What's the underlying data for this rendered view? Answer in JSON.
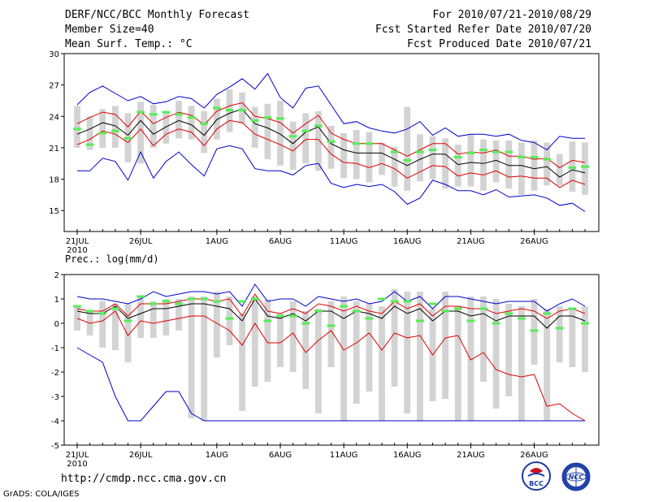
{
  "header": {
    "title": "DERF/NCC/BCC Monthly Forecast",
    "member_size": "Member Size=40",
    "variable": "Mean Surf. Temp.: °C",
    "period": "For 2010/07/21-2010/08/29",
    "fcst_started": "Fcst Started Refer Date 2010/07/20",
    "fcst_produced": "Fcst Produced Date 2010/07/21"
  },
  "footer": {
    "url": "http://cmdp.ncc.cma.gov.cn",
    "grads": "GrADS: COLA/IGES",
    "logo_bcc": "BCC",
    "logo_ncc": "NCC"
  },
  "colors": {
    "box": "#d3d3d3",
    "obs": "#55ee55",
    "mean": "#000000",
    "spread": "#dd0000",
    "extreme": "#0000cc"
  },
  "chart_data": [
    {
      "type": "line",
      "name": "temperature",
      "title": "Mean Surf. Temp.: °C",
      "ylim": [
        13,
        30
      ],
      "yticks": [
        15,
        18,
        21,
        24,
        27,
        30
      ],
      "x_days": 40,
      "xticks": [
        {
          "day": 0,
          "label": "21JUL",
          "label2": "2010"
        },
        {
          "day": 5,
          "label": "26JUL"
        },
        {
          "day": 11,
          "label": "1AUG"
        },
        {
          "day": 16,
          "label": "6AUG"
        },
        {
          "day": 21,
          "label": "11AUG"
        },
        {
          "day": 26,
          "label": "16AUG"
        },
        {
          "day": 31,
          "label": "21AUG"
        },
        {
          "day": 36,
          "label": "26AUG"
        }
      ],
      "series": [
        {
          "name": "max",
          "values": [
            18.8,
            18.8,
            20,
            19.7,
            17.9,
            20.6,
            18.1,
            19.7,
            20.6,
            19.4,
            18.3,
            20.9,
            21.2,
            20.9,
            19,
            18.8,
            18.8,
            18.4,
            19.3,
            19.5,
            17.6,
            17.2,
            17.5,
            17.3,
            17.5,
            16.8,
            15.6,
            16.2,
            17.9,
            17.5,
            16.9,
            16.9,
            16.5,
            17,
            16.3,
            16.4,
            16.5,
            16.2,
            15.5,
            15.7,
            14.9
          ]
        },
        {
          "name": "lower",
          "values": [
            21.3,
            21.8,
            22.6,
            22.3,
            21.5,
            22.8,
            21.2,
            22.3,
            22.8,
            22.5,
            21.2,
            22.8,
            23.6,
            23.4,
            22.3,
            21.8,
            21.3,
            20.7,
            21.8,
            21.8,
            20.4,
            19.6,
            19.5,
            19.1,
            19.5,
            19,
            18.1,
            18.7,
            19.3,
            19.2,
            18.3,
            18.6,
            18.4,
            18.8,
            18.2,
            18.3,
            18.1,
            18.1,
            17.2,
            17.9,
            17.5
          ]
        },
        {
          "name": "mean",
          "values": [
            22.3,
            22.8,
            23.4,
            23.1,
            22.2,
            23.6,
            22.3,
            23,
            23.6,
            23.2,
            22.2,
            23.7,
            24.3,
            24.7,
            23.3,
            22.9,
            22.3,
            21.4,
            22.5,
            23,
            21.4,
            20.8,
            20.5,
            20.5,
            20.5,
            19.9,
            19.3,
            19.9,
            20.4,
            20.4,
            19.4,
            19.6,
            19.5,
            19.8,
            19.3,
            19.3,
            19,
            19.2,
            18.2,
            18.9,
            18.6
          ]
        },
        {
          "name": "upper",
          "values": [
            23.3,
            23.9,
            24.4,
            24.2,
            23,
            24.5,
            23.3,
            23.9,
            24.4,
            24.1,
            23.2,
            24.5,
            25,
            25.3,
            24,
            23.8,
            23.4,
            22.4,
            23.3,
            24.1,
            22.4,
            21.8,
            21.4,
            21.4,
            21.4,
            20.8,
            20.2,
            20.8,
            21.4,
            21.4,
            20.4,
            20.6,
            20.5,
            20.8,
            20.2,
            20.2,
            19.9,
            20,
            19.1,
            19.8,
            19.6
          ]
        },
        {
          "name": "min",
          "values": [
            25.1,
            26.3,
            26.9,
            26.2,
            25.5,
            25.9,
            25.2,
            25.4,
            25.9,
            25.7,
            24.8,
            26.1,
            26.8,
            27.6,
            26.6,
            28.1,
            25.8,
            24.8,
            26.7,
            26.9,
            25.1,
            23.3,
            23.5,
            22.9,
            22.6,
            22.4,
            22.8,
            23.5,
            22.2,
            22.9,
            22.1,
            22.3,
            22.3,
            22.1,
            22.3,
            21.7,
            21.5,
            20.8,
            22.1,
            21.9,
            21.9
          ]
        }
      ],
      "boxes": [
        {
          "low": 21,
          "high": 25
        },
        {
          "low": 20.8,
          "high": 24
        },
        {
          "low": 21,
          "high": 24.7
        },
        {
          "low": 21,
          "high": 25
        },
        {
          "low": 19.6,
          "high": 24.3
        },
        {
          "low": 19.5,
          "high": 25.4
        },
        {
          "low": 21,
          "high": 25.1
        },
        {
          "low": 21.4,
          "high": 24.3
        },
        {
          "low": 21.9,
          "high": 25.5
        },
        {
          "low": 21.8,
          "high": 25
        },
        {
          "low": 20.5,
          "high": 24.5
        },
        {
          "low": 21.8,
          "high": 25.7
        },
        {
          "low": 22.5,
          "high": 26.6
        },
        {
          "low": 23.3,
          "high": 26.3
        },
        {
          "low": 21,
          "high": 24.9
        },
        {
          "low": 19.9,
          "high": 25.2
        },
        {
          "low": 19.3,
          "high": 25.5
        },
        {
          "low": 18.9,
          "high": 23.5
        },
        {
          "low": 19.5,
          "high": 24.3
        },
        {
          "low": 18.8,
          "high": 24.5
        },
        {
          "low": 19,
          "high": 23.1
        },
        {
          "low": 18.1,
          "high": 22.4
        },
        {
          "low": 18,
          "high": 22.7
        },
        {
          "low": 17.7,
          "high": 22.5
        },
        {
          "low": 18.4,
          "high": 21.5
        },
        {
          "low": 17.3,
          "high": 21.1
        },
        {
          "low": 16.9,
          "high": 24.9
        },
        {
          "low": 17.8,
          "high": 22.3
        },
        {
          "low": 18,
          "high": 22.1
        },
        {
          "low": 17.1,
          "high": 21.9
        },
        {
          "low": 17.3,
          "high": 21.3
        },
        {
          "low": 17.3,
          "high": 22.3
        },
        {
          "low": 16.9,
          "high": 21.8
        },
        {
          "low": 17.7,
          "high": 21.7
        },
        {
          "low": 17.1,
          "high": 21.7
        },
        {
          "low": 16.5,
          "high": 21.5
        },
        {
          "low": 16.9,
          "high": 21.7
        },
        {
          "low": 17.4,
          "high": 21.5
        },
        {
          "low": 17.4,
          "high": 20.4
        },
        {
          "low": 16.8,
          "high": 21.6
        },
        {
          "low": 16.5,
          "high": 21.5
        }
      ],
      "observed": [
        22.8,
        21.3,
        22.4,
        22.6,
        21.9,
        24.4,
        24.2,
        24.4,
        24.2,
        23.9,
        23.3,
        24.8,
        24.6,
        24.6,
        23.6,
        23.9,
        23.8,
        22.1,
        22.6,
        23.1,
        21.6,
        null,
        21.4,
        21.4,
        null,
        20.6,
        19.8,
        20.6,
        20.8,
        null,
        20.1,
        20.5,
        20.8,
        20.6,
        20.6,
        20.1,
        20.1,
        19.9,
        null,
        19.1,
        19.2
      ]
    },
    {
      "type": "line",
      "name": "precipitation",
      "title": "Prec.: log(mm/d)",
      "ylim": [
        -5,
        2
      ],
      "yticks": [
        -5,
        -4,
        -3,
        -2,
        -1,
        0,
        1,
        2
      ],
      "x_days": 40,
      "xticks": [
        {
          "day": 0,
          "label": "21JUL",
          "label2": "2010"
        },
        {
          "day": 5,
          "label": "26JUL"
        },
        {
          "day": 11,
          "label": "1AUG"
        },
        {
          "day": 16,
          "label": "6AUG"
        },
        {
          "day": 21,
          "label": "11AUG"
        },
        {
          "day": 26,
          "label": "16AUG"
        },
        {
          "day": 31,
          "label": "21AUG"
        },
        {
          "day": 36,
          "label": "26AUG"
        }
      ],
      "series": [
        {
          "name": "max",
          "values": [
            1.1,
            1,
            1,
            0.9,
            0.8,
            1,
            1.3,
            1.1,
            1.2,
            1.3,
            1.3,
            1.2,
            1.3,
            0.7,
            1.6,
            0.9,
            1,
            1,
            0.7,
            1.1,
            1,
            0.9,
            1,
            0.8,
            0.9,
            1.3,
            0.9,
            1.1,
            0.6,
            1.1,
            1.1,
            1,
            0.9,
            0.8,
            0.9,
            0.9,
            0.9,
            0.5,
            0.8,
            1,
            0.7
          ]
        },
        {
          "name": "upper",
          "values": [
            0.6,
            0.5,
            0.5,
            0.8,
            0.3,
            0.8,
            0.8,
            0.8,
            0.9,
            1,
            1,
            0.9,
            1,
            0.3,
            1.2,
            0.5,
            0.4,
            0.6,
            0.4,
            0.8,
            0.7,
            0.5,
            0.7,
            0.5,
            0.4,
            0.9,
            0.6,
            0.8,
            0.3,
            0.7,
            0.7,
            0.6,
            0.6,
            0.4,
            0.5,
            0.6,
            0.5,
            0.2,
            0.5,
            0.6,
            0.4
          ]
        },
        {
          "name": "mean",
          "values": [
            0.5,
            0.4,
            0.4,
            0.7,
            0.2,
            0.4,
            0.6,
            0.6,
            0.7,
            0.8,
            0.8,
            0.7,
            0.6,
            0.1,
            1,
            0.3,
            0.2,
            0.4,
            0.1,
            0.5,
            0.5,
            0.2,
            0.5,
            0.4,
            0.2,
            0.7,
            0.4,
            0.6,
            0.1,
            0.5,
            0.5,
            0.3,
            0.4,
            0.1,
            0.3,
            0.3,
            0.3,
            -0.2,
            0.3,
            0.3,
            0.1
          ]
        },
        {
          "name": "lower",
          "values": [
            0.2,
            0,
            0.1,
            0.5,
            -0.5,
            0.1,
            0,
            0.1,
            0.2,
            0.3,
            0.3,
            0,
            -0.3,
            -0.9,
            0,
            -0.8,
            -0.8,
            -0.4,
            -1.2,
            -0.7,
            -0.3,
            -1.1,
            -0.8,
            -0.4,
            -1.1,
            -0.4,
            -0.6,
            -0.5,
            -1.3,
            -0.6,
            -0.5,
            -1.5,
            -1.2,
            -1.9,
            -2.1,
            -2.2,
            -2.1,
            -3.4,
            -3.3,
            -3.7,
            -4
          ]
        },
        {
          "name": "min",
          "values": [
            -1,
            -1.3,
            -1.6,
            -3,
            -4,
            -4,
            -3.4,
            -2.8,
            -2.8,
            -3.7,
            -4,
            -4,
            -4,
            -4,
            -4,
            -4,
            -4,
            -4,
            -4,
            -4,
            -4,
            -4,
            -4,
            -4,
            -4,
            -4,
            -4,
            -4,
            -4,
            -4,
            -4,
            -4,
            -4,
            -4,
            -4,
            -4,
            -4,
            -4,
            -4,
            -4,
            -4
          ]
        }
      ],
      "boxes": [
        {
          "low": -0.3,
          "high": 0.7
        },
        {
          "low": -0.5,
          "high": 0.5
        },
        {
          "low": -1,
          "high": 0.9
        },
        {
          "low": -1.1,
          "high": 0.8
        },
        {
          "low": -1.6,
          "high": 0.8
        },
        {
          "low": -0.6,
          "high": 1.1
        },
        {
          "low": -0.6,
          "high": 0.9
        },
        {
          "low": -0.5,
          "high": 1
        },
        {
          "low": -0.3,
          "high": 1
        },
        {
          "low": -3.9,
          "high": 1.1
        },
        {
          "low": -4,
          "high": 1.1
        },
        {
          "low": -1.4,
          "high": 1.3
        },
        {
          "low": -0.9,
          "high": 1.1
        },
        {
          "low": -3.6,
          "high": 0.4
        },
        {
          "low": -2.6,
          "high": 1.1
        },
        {
          "low": -2.4,
          "high": 1
        },
        {
          "low": -1.8,
          "high": 0.4
        },
        {
          "low": -2,
          "high": 0.9
        },
        {
          "low": -2.7,
          "high": 0.5
        },
        {
          "low": -3.7,
          "high": 0.6
        },
        {
          "low": -1.8,
          "high": 0.9
        },
        {
          "low": -4,
          "high": 1.1
        },
        {
          "low": -3.3,
          "high": 0.9
        },
        {
          "low": -2.8,
          "high": 0.8
        },
        {
          "low": -4,
          "high": 0.7
        },
        {
          "low": -2.6,
          "high": 1.4
        },
        {
          "low": -3.7,
          "high": 1.3
        },
        {
          "low": -4,
          "high": 1.3
        },
        {
          "low": -3.2,
          "high": 0.6
        },
        {
          "low": -3.1,
          "high": 1.3
        },
        {
          "low": -4,
          "high": 0.7
        },
        {
          "low": -4,
          "high": 1.1
        },
        {
          "low": -2.4,
          "high": 1.1
        },
        {
          "low": -3.5,
          "high": 1
        },
        {
          "low": -3,
          "high": 0.8
        },
        {
          "low": -4,
          "high": 0.7
        },
        {
          "low": -1.7,
          "high": 1
        },
        {
          "low": -4,
          "high": 0.6
        },
        {
          "low": -1.6,
          "high": 0.7
        },
        {
          "low": -1.8,
          "high": 0.6
        },
        {
          "low": -2,
          "high": 0.7
        }
      ],
      "observed": [
        0.7,
        0.5,
        0.4,
        0.6,
        0.1,
        1.1,
        0.8,
        0.9,
        0.8,
        1,
        1,
        0.9,
        0.2,
        0.9,
        1,
        0.1,
        0.3,
        0.3,
        0,
        0.5,
        -0.1,
        0.7,
        0.5,
        0.2,
        1,
        0.9,
        0.9,
        0.1,
        0.8,
        0.5,
        0.6,
        0.1,
        0.6,
        0,
        0.4,
        0.2,
        -0.3,
        0.4,
        -0.2,
        0.6,
        0
      ]
    }
  ]
}
